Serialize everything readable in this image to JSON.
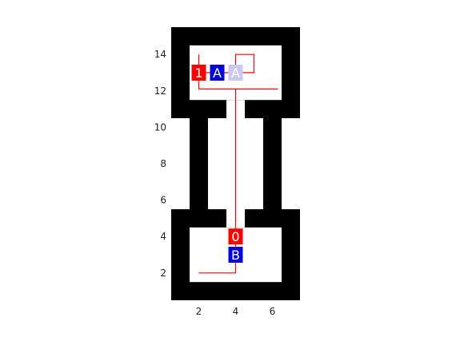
{
  "colors": {
    "background": "#ffffff",
    "wall": "#000000",
    "path": "#ff0000",
    "robot_marker": "#ff0000",
    "box_marker": "#0000dd",
    "goal_marker": "#c8c8f0",
    "tick_text": "#222222"
  },
  "axes": {
    "x": {
      "ticks": [
        "2",
        "4",
        "6"
      ]
    },
    "y": {
      "ticks": [
        "2",
        "4",
        "6",
        "8",
        "10",
        "12",
        "14"
      ]
    }
  },
  "world": {
    "xlim": [
      0.5,
      7.5
    ],
    "ylim": [
      0.5,
      15.5
    ],
    "free_rects": [
      {
        "x0": 1.5,
        "x1": 6.5,
        "y0": 1.5,
        "y1": 4.5
      },
      {
        "x0": 3.5,
        "x1": 4.5,
        "y0": 4.5,
        "y1": 5.5
      },
      {
        "x0": 2.5,
        "x1": 5.5,
        "y0": 5.5,
        "y1": 10.5
      },
      {
        "x0": 3.5,
        "x1": 4.5,
        "y0": 10.5,
        "y1": 11.5
      },
      {
        "x0": 1.5,
        "x1": 6.5,
        "y0": 11.5,
        "y1": 14.5
      }
    ]
  },
  "paths": [
    [
      [
        4,
        4
      ],
      [
        4,
        12.1
      ],
      [
        6.3,
        12.1
      ]
    ],
    [
      [
        4,
        13
      ],
      [
        5,
        13
      ],
      [
        5,
        14
      ],
      [
        4,
        14
      ],
      [
        4,
        13
      ]
    ],
    [
      [
        2,
        14
      ],
      [
        2,
        12.1
      ],
      [
        4,
        12.1
      ]
    ],
    [
      [
        4,
        3
      ],
      [
        4,
        2
      ],
      [
        2,
        2
      ]
    ],
    [
      [
        4,
        4
      ],
      [
        4,
        3
      ]
    ],
    [
      [
        2,
        13
      ],
      [
        4,
        13
      ]
    ]
  ],
  "markers": [
    {
      "label": "1",
      "x": 2,
      "y": 13,
      "kind": "robot"
    },
    {
      "label": "A",
      "x": 3,
      "y": 13,
      "kind": "box"
    },
    {
      "label": "A",
      "x": 4,
      "y": 13,
      "kind": "goal"
    },
    {
      "label": "0",
      "x": 4,
      "y": 4,
      "kind": "robot"
    },
    {
      "label": "B",
      "x": 4,
      "y": 3,
      "kind": "box"
    }
  ]
}
